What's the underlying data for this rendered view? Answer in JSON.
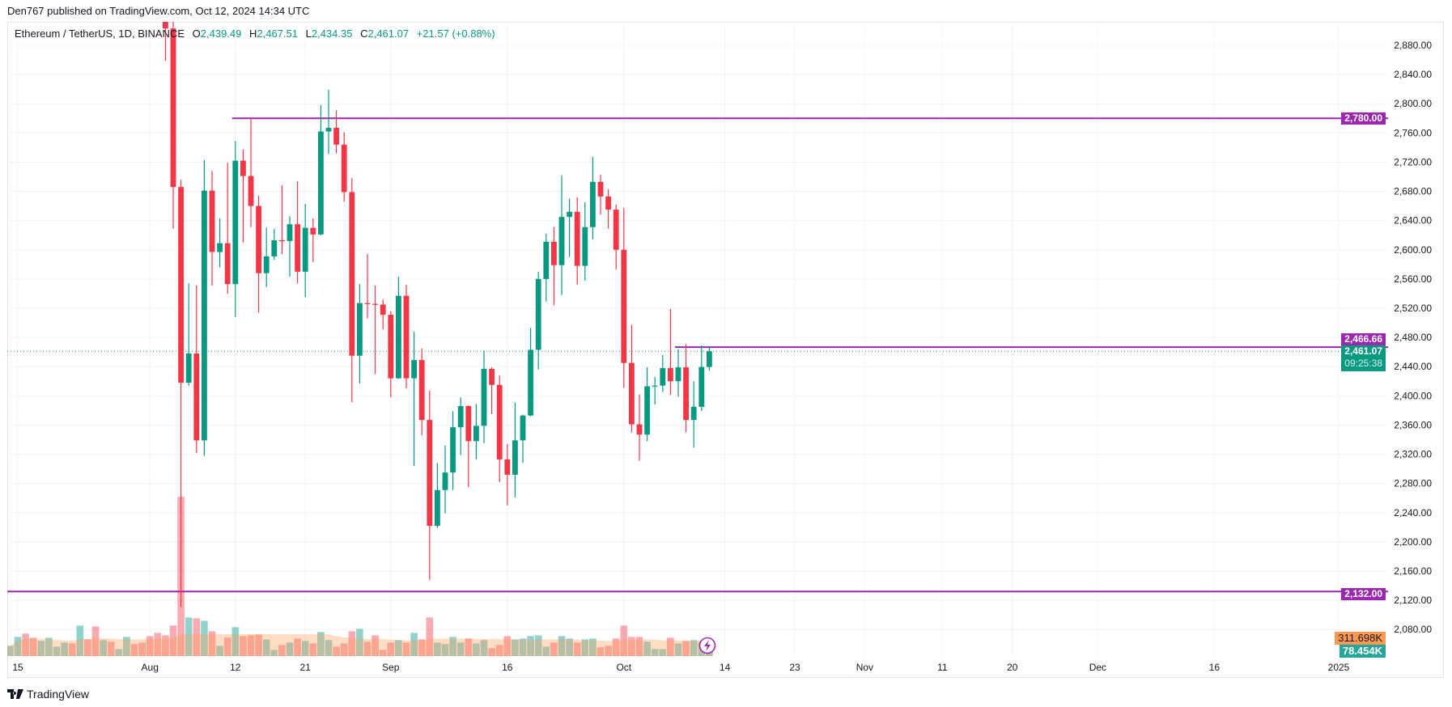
{
  "header": {
    "published": "Den767 published on TradingView.com, Oct 12, 2024 14:34 UTC"
  },
  "legend": {
    "symbol": "Ethereum / TetherUS, 1D, BINANCE",
    "o_label": "O",
    "o": "2,439.49",
    "h_label": "H",
    "h": "2,467.51",
    "l_label": "L",
    "l": "2,434.35",
    "c_label": "C",
    "c": "2,461.07",
    "change": "+21.57 (+0.88%)"
  },
  "footer": {
    "brand": "TradingView",
    "logo_icon": "tradingview-logo-icon"
  },
  "colors": {
    "up": "#089981",
    "down": "#f23645",
    "line": "#9c27b0",
    "volume_ma": "#ff9850",
    "grid": "#f0f3fa",
    "text": "#131722"
  },
  "chart_data": {
    "type": "candlestick",
    "symbol": "Ethereum / TetherUS",
    "interval": "1D",
    "exchange": "BINANCE",
    "y_axis": {
      "range": [
        2070,
        2905
      ],
      "ticks": [
        "2,880.00",
        "2,840.00",
        "2,800.00",
        "2,760.00",
        "2,720.00",
        "2,680.00",
        "2,640.00",
        "2,600.00",
        "2,560.00",
        "2,520.00",
        "2,480.00",
        "2,440.00",
        "2,400.00",
        "2,360.00",
        "2,320.00",
        "2,280.00",
        "2,240.00",
        "2,200.00",
        "2,160.00",
        "2,120.00",
        "2,080.00"
      ]
    },
    "x_axis": {
      "range": [
        "2024-07-14",
        "2025-01-10"
      ],
      "ticks": [
        {
          "date": "2024-07-15",
          "label": "15"
        },
        {
          "date": "2024-08-01",
          "label": "Aug"
        },
        {
          "date": "2024-08-12",
          "label": "12"
        },
        {
          "date": "2024-08-21",
          "label": "21"
        },
        {
          "date": "2024-09-01",
          "label": "Sep"
        },
        {
          "date": "2024-09-16",
          "label": "16"
        },
        {
          "date": "2024-10-01",
          "label": "Oct"
        },
        {
          "date": "2024-10-14",
          "label": "14"
        },
        {
          "date": "2024-10-23",
          "label": "23"
        },
        {
          "date": "2024-11-01",
          "label": "Nov"
        },
        {
          "date": "2024-11-11",
          "label": "11"
        },
        {
          "date": "2024-11-20",
          "label": "20"
        },
        {
          "date": "2024-12-01",
          "label": "Dec"
        },
        {
          "date": "2024-12-16",
          "label": "16"
        },
        {
          "date": "2025-01-01",
          "label": "2025"
        }
      ]
    },
    "grid": true,
    "candles_ohlc": [
      [
        "2024-08-03",
        2988,
        3018,
        2859,
        2903
      ],
      [
        "2024-08-04",
        2903,
        2937,
        2629,
        2686
      ],
      [
        "2024-08-05",
        2686,
        2696,
        2111,
        2418
      ],
      [
        "2024-08-06",
        2418,
        2554,
        2414,
        2458
      ],
      [
        "2024-08-07",
        2458,
        2551,
        2322,
        2339
      ],
      [
        "2024-08-08",
        2339,
        2723,
        2318,
        2681
      ],
      [
        "2024-08-09",
        2681,
        2708,
        2551,
        2597
      ],
      [
        "2024-08-10",
        2597,
        2643,
        2576,
        2609
      ],
      [
        "2024-08-11",
        2609,
        2719,
        2540,
        2553
      ],
      [
        "2024-08-12",
        2553,
        2749,
        2508,
        2722
      ],
      [
        "2024-08-13",
        2722,
        2737,
        2610,
        2701
      ],
      [
        "2024-08-14",
        2701,
        2780,
        2631,
        2660
      ],
      [
        "2024-08-15",
        2660,
        2674,
        2514,
        2568
      ],
      [
        "2024-08-16",
        2568,
        2630,
        2549,
        2591
      ],
      [
        "2024-08-17",
        2591,
        2629,
        2586,
        2613
      ],
      [
        "2024-08-18",
        2613,
        2688,
        2594,
        2612
      ],
      [
        "2024-08-19",
        2612,
        2646,
        2563,
        2635
      ],
      [
        "2024-08-20",
        2635,
        2694,
        2554,
        2570
      ],
      [
        "2024-08-21",
        2570,
        2663,
        2535,
        2630
      ],
      [
        "2024-08-22",
        2630,
        2643,
        2583,
        2621
      ],
      [
        "2024-08-23",
        2621,
        2798,
        2620,
        2762
      ],
      [
        "2024-08-24",
        2762,
        2819,
        2731,
        2767
      ],
      [
        "2024-08-25",
        2767,
        2791,
        2732,
        2744
      ],
      [
        "2024-08-26",
        2744,
        2761,
        2666,
        2679
      ],
      [
        "2024-08-27",
        2679,
        2698,
        2391,
        2455
      ],
      [
        "2024-08-28",
        2455,
        2553,
        2417,
        2527
      ],
      [
        "2024-08-29",
        2527,
        2594,
        2506,
        2526
      ],
      [
        "2024-08-30",
        2526,
        2551,
        2430,
        2525
      ],
      [
        "2024-08-31",
        2525,
        2532,
        2491,
        2511
      ],
      [
        "2024-09-01",
        2511,
        2516,
        2398,
        2424
      ],
      [
        "2024-09-02",
        2424,
        2563,
        2423,
        2537
      ],
      [
        "2024-09-03",
        2537,
        2552,
        2410,
        2424
      ],
      [
        "2024-09-04",
        2424,
        2488,
        2304,
        2449
      ],
      [
        "2024-09-05",
        2449,
        2465,
        2346,
        2367
      ],
      [
        "2024-09-06",
        2367,
        2407,
        2148,
        2222
      ],
      [
        "2024-09-07",
        2222,
        2308,
        2219,
        2271
      ],
      [
        "2024-09-08",
        2271,
        2332,
        2239,
        2295
      ],
      [
        "2024-09-09",
        2295,
        2379,
        2271,
        2357
      ],
      [
        "2024-09-10",
        2357,
        2398,
        2319,
        2386
      ],
      [
        "2024-09-11",
        2386,
        2387,
        2275,
        2338
      ],
      [
        "2024-09-12",
        2338,
        2389,
        2313,
        2359
      ],
      [
        "2024-09-13",
        2359,
        2462,
        2335,
        2437
      ],
      [
        "2024-09-14",
        2437,
        2439,
        2375,
        2415
      ],
      [
        "2024-09-15",
        2415,
        2428,
        2282,
        2313
      ],
      [
        "2024-09-16",
        2313,
        2334,
        2250,
        2292
      ],
      [
        "2024-09-17",
        2292,
        2391,
        2261,
        2339
      ],
      [
        "2024-09-18",
        2339,
        2374,
        2308,
        2373
      ],
      [
        "2024-09-19",
        2373,
        2493,
        2372,
        2463
      ],
      [
        "2024-09-20",
        2463,
        2570,
        2436,
        2560
      ],
      [
        "2024-09-21",
        2560,
        2622,
        2529,
        2611
      ],
      [
        "2024-09-22",
        2611,
        2631,
        2524,
        2579
      ],
      [
        "2024-09-23",
        2579,
        2702,
        2538,
        2645
      ],
      [
        "2024-09-24",
        2645,
        2670,
        2590,
        2652
      ],
      [
        "2024-09-25",
        2652,
        2672,
        2552,
        2578
      ],
      [
        "2024-09-26",
        2578,
        2665,
        2558,
        2631
      ],
      [
        "2024-09-27",
        2631,
        2727,
        2614,
        2693
      ],
      [
        "2024-09-28",
        2693,
        2703,
        2648,
        2673
      ],
      [
        "2024-09-29",
        2673,
        2683,
        2629,
        2655
      ],
      [
        "2024-09-30",
        2655,
        2662,
        2573,
        2600
      ],
      [
        "2024-10-01",
        2600,
        2657,
        2411,
        2445
      ],
      [
        "2024-10-02",
        2445,
        2497,
        2350,
        2361
      ],
      [
        "2024-10-03",
        2361,
        2402,
        2311,
        2347
      ],
      [
        "2024-10-04",
        2347,
        2439,
        2338,
        2413
      ],
      [
        "2024-10-05",
        2413,
        2426,
        2388,
        2414
      ],
      [
        "2024-10-06",
        2414,
        2456,
        2405,
        2438
      ],
      [
        "2024-10-07",
        2438,
        2519,
        2401,
        2420
      ],
      [
        "2024-10-08",
        2420,
        2464,
        2399,
        2439
      ],
      [
        "2024-10-09",
        2439,
        2471,
        2350,
        2367
      ],
      [
        "2024-10-10",
        2367,
        2420,
        2329,
        2385
      ],
      [
        "2024-10-11",
        2385,
        2469,
        2379,
        2439.49
      ],
      [
        "2024-10-12",
        2439.49,
        2467.51,
        2434.35,
        2461.07
      ]
    ],
    "volume_k": [
      [
        "2024-07-14",
        160,
        "up"
      ],
      [
        "2024-07-15",
        298,
        "up"
      ],
      [
        "2024-07-16",
        349,
        "down"
      ],
      [
        "2024-07-17",
        286,
        "down"
      ],
      [
        "2024-07-18",
        235,
        "up"
      ],
      [
        "2024-07-19",
        286,
        "up"
      ],
      [
        "2024-07-20",
        147,
        "up"
      ],
      [
        "2024-07-21",
        210,
        "up"
      ],
      [
        "2024-07-22",
        197,
        "down"
      ],
      [
        "2024-07-23",
        475,
        "up"
      ],
      [
        "2024-07-24",
        260,
        "down"
      ],
      [
        "2024-07-25",
        462,
        "down"
      ],
      [
        "2024-07-26",
        248,
        "up"
      ],
      [
        "2024-07-27",
        223,
        "down"
      ],
      [
        "2024-07-28",
        109,
        "up"
      ],
      [
        "2024-07-29",
        298,
        "up"
      ],
      [
        "2024-07-30",
        185,
        "down"
      ],
      [
        "2024-07-31",
        210,
        "down"
      ],
      [
        "2024-08-01",
        311,
        "down"
      ],
      [
        "2024-08-02",
        361,
        "down"
      ],
      [
        "2024-08-03",
        323,
        "down"
      ],
      [
        "2024-08-04",
        475,
        "down"
      ],
      [
        "2024-08-05",
        2480,
        "down"
      ],
      [
        "2024-08-06",
        601,
        "up"
      ],
      [
        "2024-08-07",
        588,
        "down"
      ],
      [
        "2024-08-08",
        550,
        "up"
      ],
      [
        "2024-08-09",
        386,
        "down"
      ],
      [
        "2024-08-10",
        160,
        "up"
      ],
      [
        "2024-08-11",
        286,
        "down"
      ],
      [
        "2024-08-12",
        449,
        "up"
      ],
      [
        "2024-08-13",
        311,
        "down"
      ],
      [
        "2024-08-14",
        323,
        "down"
      ],
      [
        "2024-08-15",
        336,
        "down"
      ],
      [
        "2024-08-16",
        260,
        "up"
      ],
      [
        "2024-08-17",
        97,
        "up"
      ],
      [
        "2024-08-18",
        172,
        "down"
      ],
      [
        "2024-08-19",
        210,
        "up"
      ],
      [
        "2024-08-20",
        273,
        "down"
      ],
      [
        "2024-08-21",
        235,
        "up"
      ],
      [
        "2024-08-22",
        197,
        "down"
      ],
      [
        "2024-08-23",
        374,
        "up"
      ],
      [
        "2024-08-24",
        248,
        "up"
      ],
      [
        "2024-08-25",
        147,
        "down"
      ],
      [
        "2024-08-26",
        197,
        "down"
      ],
      [
        "2024-08-27",
        386,
        "down"
      ],
      [
        "2024-08-28",
        424,
        "up"
      ],
      [
        "2024-08-29",
        223,
        "down"
      ],
      [
        "2024-08-30",
        323,
        "down"
      ],
      [
        "2024-08-31",
        97,
        "down"
      ],
      [
        "2024-09-01",
        210,
        "down"
      ],
      [
        "2024-09-02",
        248,
        "up"
      ],
      [
        "2024-09-03",
        210,
        "down"
      ],
      [
        "2024-09-04",
        361,
        "up"
      ],
      [
        "2024-09-05",
        260,
        "down"
      ],
      [
        "2024-09-06",
        601,
        "down"
      ],
      [
        "2024-09-07",
        210,
        "up"
      ],
      [
        "2024-09-08",
        185,
        "up"
      ],
      [
        "2024-09-09",
        298,
        "up"
      ],
      [
        "2024-09-10",
        210,
        "up"
      ],
      [
        "2024-09-11",
        273,
        "down"
      ],
      [
        "2024-09-12",
        197,
        "up"
      ],
      [
        "2024-09-13",
        248,
        "up"
      ],
      [
        "2024-09-14",
        122,
        "down"
      ],
      [
        "2024-09-15",
        172,
        "down"
      ],
      [
        "2024-09-16",
        311,
        "down"
      ],
      [
        "2024-09-17",
        260,
        "up"
      ],
      [
        "2024-09-18",
        273,
        "up"
      ],
      [
        "2024-09-19",
        311,
        "up"
      ],
      [
        "2024-09-20",
        323,
        "up"
      ],
      [
        "2024-09-21",
        147,
        "up"
      ],
      [
        "2024-09-22",
        210,
        "down"
      ],
      [
        "2024-09-23",
        311,
        "up"
      ],
      [
        "2024-09-24",
        273,
        "up"
      ],
      [
        "2024-09-25",
        210,
        "down"
      ],
      [
        "2024-09-26",
        260,
        "up"
      ],
      [
        "2024-09-27",
        273,
        "up"
      ],
      [
        "2024-09-28",
        134,
        "down"
      ],
      [
        "2024-09-29",
        160,
        "down"
      ],
      [
        "2024-09-30",
        273,
        "down"
      ],
      [
        "2024-10-01",
        475,
        "down"
      ],
      [
        "2024-10-02",
        298,
        "down"
      ],
      [
        "2024-10-03",
        298,
        "down"
      ],
      [
        "2024-10-04",
        223,
        "up"
      ],
      [
        "2024-10-05",
        109,
        "up"
      ],
      [
        "2024-10-06",
        109,
        "up"
      ],
      [
        "2024-10-07",
        286,
        "down"
      ],
      [
        "2024-10-08",
        197,
        "up"
      ],
      [
        "2024-10-09",
        235,
        "down"
      ],
      [
        "2024-10-10",
        248,
        "up"
      ],
      [
        "2024-10-11",
        223,
        "up"
      ],
      [
        "2024-10-12",
        78.454,
        "up"
      ]
    ],
    "volume_ma_label": "311.698K",
    "volume_last_label": "78.454K",
    "horizontal_lines": [
      {
        "price": 2780,
        "label": "2,780.00",
        "from": "2024-08-12"
      },
      {
        "price": 2466.66,
        "label": "2,466.66",
        "from": "2024-10-08"
      },
      {
        "price": 2132,
        "label": "2,132.00",
        "from": "2024-07-14"
      }
    ],
    "last_price": {
      "price": 2461.07,
      "label": "2,461.07",
      "countdown": "09:25:38"
    },
    "replay_icon": "lightning-icon"
  }
}
